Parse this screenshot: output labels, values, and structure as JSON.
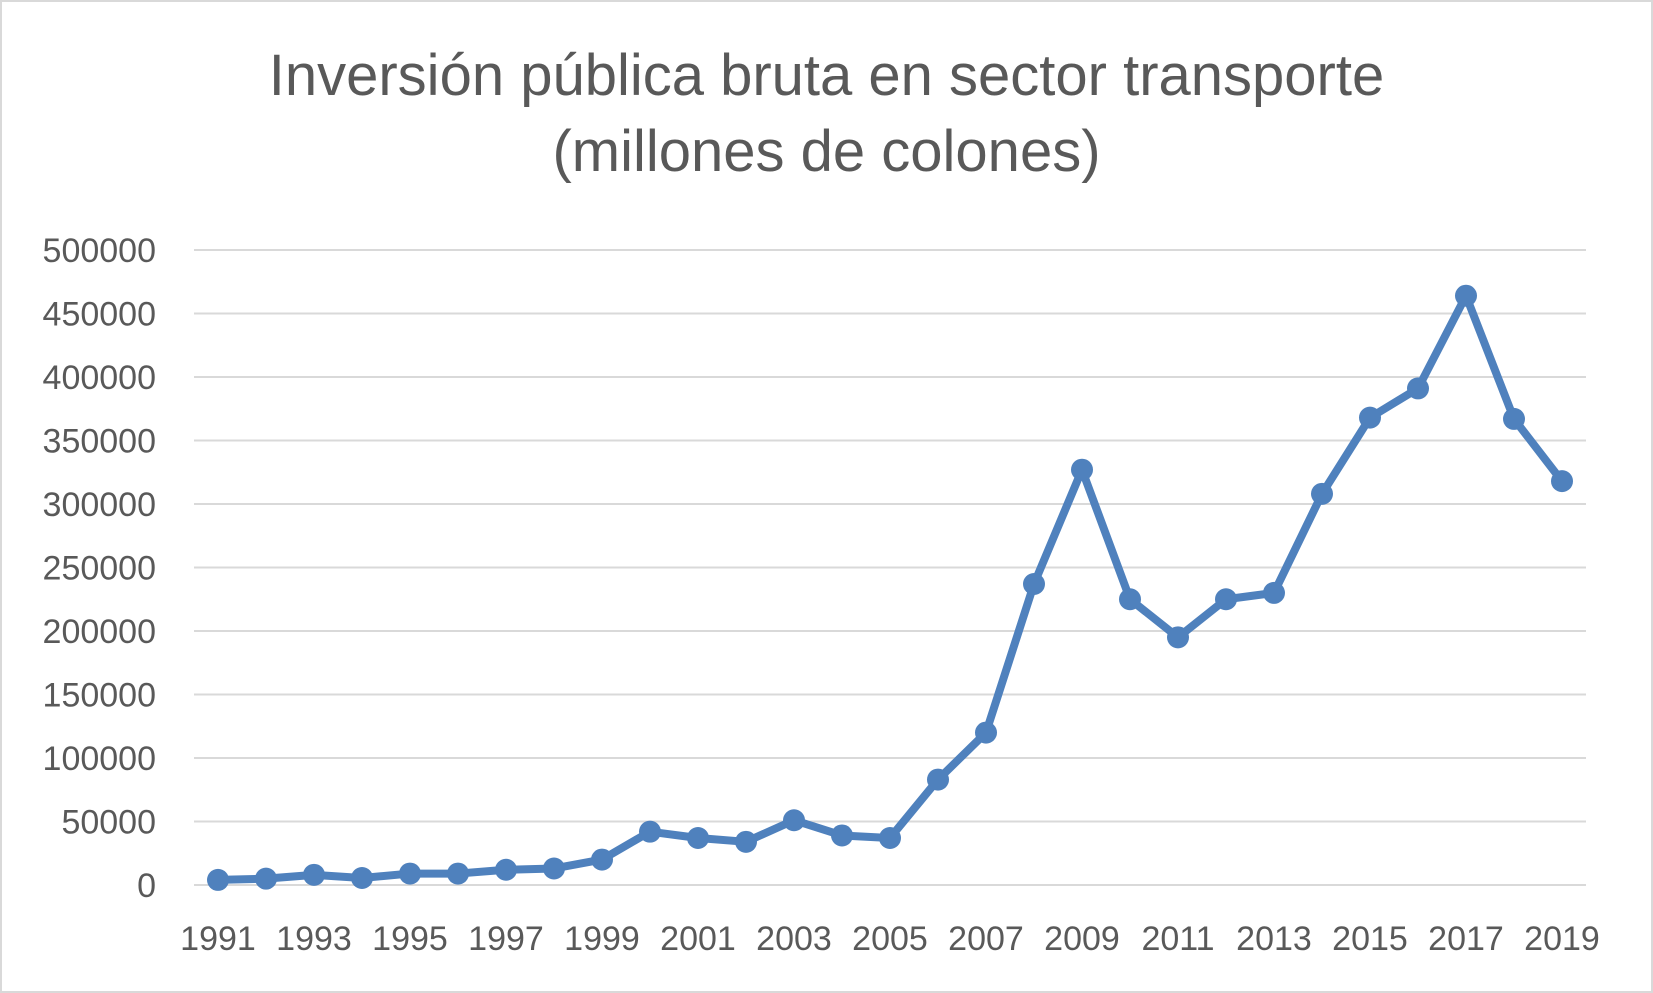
{
  "chart_data": {
    "type": "line",
    "title": "Inversión pública bruta en sector transporte",
    "subtitle": "(millones de colones)",
    "xlabel": "",
    "ylabel": "",
    "x": [
      1991,
      1992,
      1993,
      1994,
      1995,
      1996,
      1997,
      1998,
      1999,
      2000,
      2001,
      2002,
      2003,
      2004,
      2005,
      2006,
      2007,
      2008,
      2009,
      2010,
      2011,
      2012,
      2013,
      2014,
      2015,
      2016,
      2017,
      2018,
      2019
    ],
    "x_tick_labels": [
      "1991",
      "1993",
      "1995",
      "1997",
      "1999",
      "2001",
      "2003",
      "2005",
      "2007",
      "2009",
      "2011",
      "2013",
      "2015",
      "2017",
      "2019"
    ],
    "y_tick_labels": [
      "0",
      "50000",
      "100000",
      "150000",
      "200000",
      "250000",
      "300000",
      "350000",
      "400000",
      "450000",
      "500000"
    ],
    "series": [
      {
        "values": [
          4000,
          5000,
          8000,
          5500,
          9000,
          9000,
          12000,
          13000,
          20000,
          42000,
          37000,
          34000,
          51000,
          39000,
          37000,
          83000,
          120000,
          237000,
          327000,
          225000,
          195000,
          225000,
          230000,
          308000,
          368000,
          391000,
          464000,
          367000,
          318000
        ],
        "color": "#4f81bd"
      }
    ],
    "ylim": [
      0,
      500000
    ],
    "grid": true,
    "legend": "none"
  }
}
